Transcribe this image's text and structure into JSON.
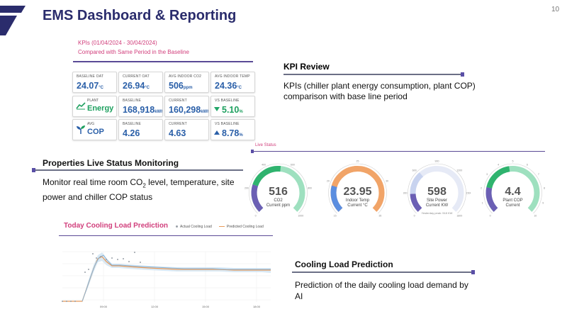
{
  "header": {
    "title": "EMS Dashboard & Reporting",
    "page_number": "10"
  },
  "kpi_panel": {
    "period": "KPIs (01/04/2024 - 30/04/2024)",
    "subtitle": "Compared with Same Period in the Baseline",
    "row1": [
      {
        "label": "BASELINE OAT",
        "value": "24.07",
        "unit": "°C"
      },
      {
        "label": "CURRENT OAT",
        "value": "26.94",
        "unit": "°C"
      },
      {
        "label": "AVG INDOOR CO2",
        "value": "506",
        "unit": "ppm"
      },
      {
        "label": "AVG INDOOR TEMP",
        "value": "24.36",
        "unit": "°C"
      }
    ],
    "row2": {
      "category_small": "PLANT",
      "category": "Energy",
      "baseline_label": "BASELINE",
      "baseline_value": "168,918",
      "baseline_unit": "kWh",
      "current_label": "CURRENT",
      "current_value": "160,298",
      "current_unit": "kWh",
      "vs_label": "VS BASELINE",
      "vs_value": "5.10",
      "vs_unit": "%",
      "vs_direction": "down"
    },
    "row3": {
      "category_small": "AVG",
      "category": "COP",
      "baseline_label": "BASELINE",
      "baseline_value": "4.26",
      "current_label": "CURRENT",
      "current_value": "4.63",
      "vs_label": "VS BASELINE",
      "vs_value": "8.78",
      "vs_unit": "%",
      "vs_direction": "up"
    }
  },
  "kpi_review": {
    "title": "KPI Review",
    "text": "KPIs (chiller plant energy consumption, plant COP) comparison with base line period"
  },
  "properties": {
    "title": "Properties Live Status Monitoring",
    "text_before": "Monitor real time room CO",
    "text_sub": "2",
    "text_after": " level, temperature, site power and chiller COP status"
  },
  "live_status": {
    "label": "Live Status",
    "gauges": [
      {
        "value": "516",
        "line1": "CO2",
        "line2": "Current ppm",
        "fraction": 0.52,
        "ticks": [
          "0",
          "200",
          "400",
          "600",
          "800",
          "1000"
        ],
        "colors": [
          "#6b5fb4",
          "#2fb36e",
          "#9ee0bf"
        ]
      },
      {
        "value": "23.95",
        "line1": "Indoor Temp",
        "line2": "Current °C",
        "fraction": 0.5,
        "ticks": [
          "15",
          "20",
          "25",
          "30",
          "35"
        ],
        "colors": [
          "#5b8ee0",
          "#f1a468",
          "#f1a468"
        ]
      },
      {
        "value": "598",
        "line1": "Site Power",
        "line2": "Current KW",
        "fraction": 0.35,
        "ticks": [
          "0",
          "300",
          "600",
          "900",
          "1200",
          "1500",
          "1800"
        ],
        "colors": [
          "#6b5fb4",
          "#c8d3ef",
          "#e6eaf6"
        ],
        "note": "Yesterday peak: 518 KW"
      },
      {
        "value": "4.4",
        "line1": "Plant COP",
        "line2": "Current",
        "fraction": 0.47,
        "ticks": [
          "0",
          "1",
          "2",
          "3",
          "4",
          "5",
          "6",
          "7",
          "8",
          "9",
          "10"
        ],
        "colors": [
          "#6b5fb4",
          "#2fb36e",
          "#9ee0bf"
        ]
      }
    ]
  },
  "cooling_chart": {
    "title": "Today Cooling Load Prediction",
    "legend_actual": "Actual Cooling Load",
    "legend_predicted": "Predicted Cooling Load",
    "x_ticks": [
      "09:00",
      "12:00",
      "15:00",
      "18:00"
    ]
  },
  "cooling_text": {
    "title": "Cooling Load Prediction",
    "text": "Prediction of the daily cooling load demand by AI"
  },
  "colors": {
    "title": "#2a2c6c",
    "accent_pink": "#d13f7c",
    "rule_purple": "#5a4a96"
  }
}
